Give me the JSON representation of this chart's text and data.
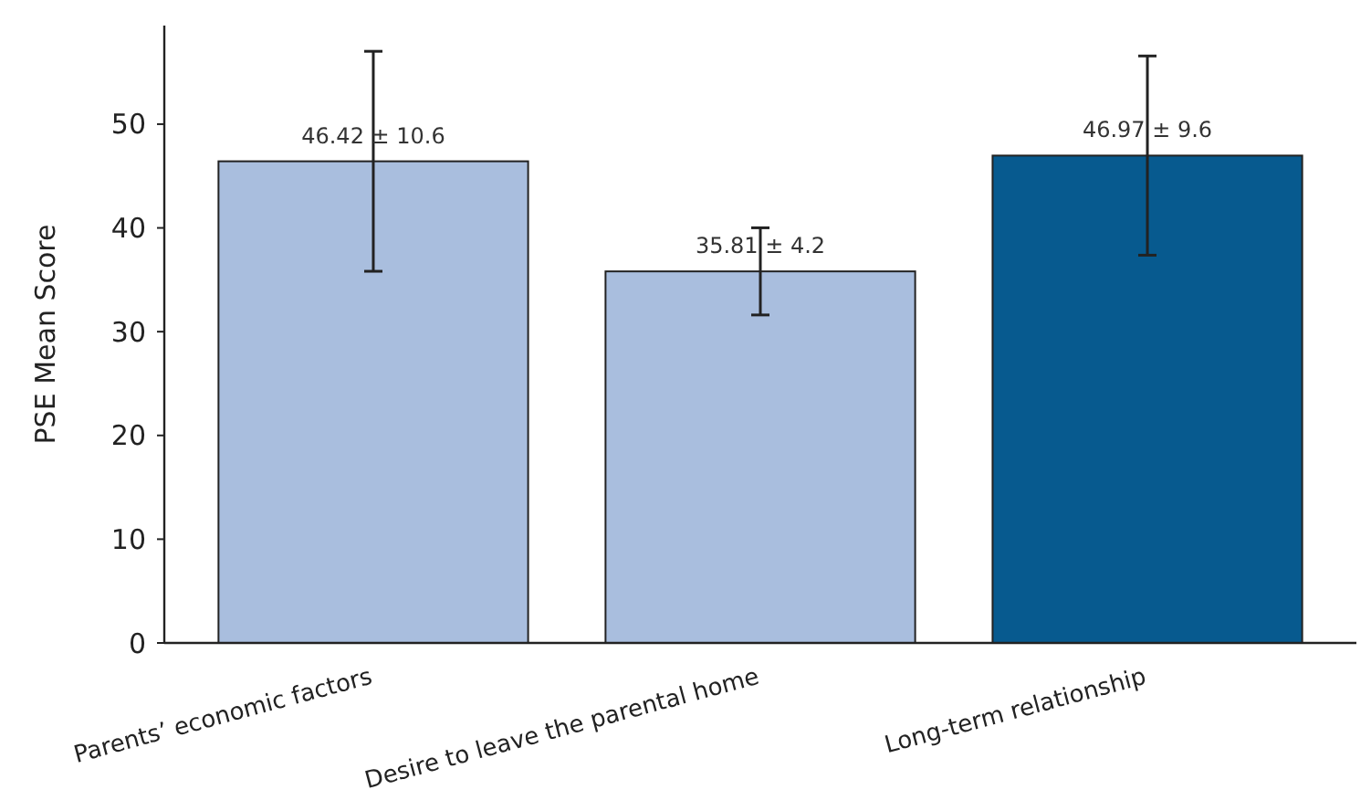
{
  "chart_data": {
    "type": "bar",
    "ylabel": "PSE Mean Score",
    "categories": [
      "Parents’ economic factors",
      "Desire to leave the parental home",
      "Long-term relationship"
    ],
    "values": [
      46.42,
      35.81,
      46.97
    ],
    "errors": [
      10.6,
      4.2,
      9.6
    ],
    "value_labels": [
      "46.42 ± 10.6",
      "35.81 ± 4.2",
      "46.97 ± 9.6"
    ],
    "colors": [
      "#a9bede",
      "#a9bede",
      "#075a8f"
    ],
    "ylim": [
      0,
      59.5
    ],
    "yticks": [
      0,
      10,
      20,
      30,
      40,
      50
    ],
    "grid": false
  }
}
